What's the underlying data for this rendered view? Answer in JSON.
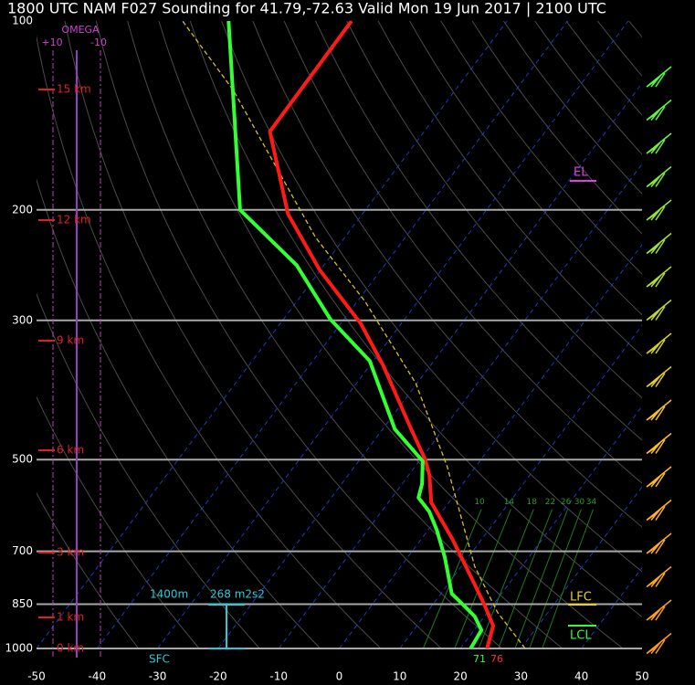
{
  "chart_data": {
    "type": "skewt",
    "title": "1800 UTC NAM F027 Sounding for 41.79,-72.63 Valid  Mon 19 Jun 2017 | 2100 UTC",
    "xlim": [
      -50,
      50
    ],
    "xticks": [
      -50,
      -40,
      -30,
      -20,
      -10,
      0,
      10,
      20,
      30,
      40,
      50
    ],
    "ylim": [
      1000,
      100
    ],
    "yticks": [
      100,
      200,
      300,
      500,
      700,
      850,
      1000
    ],
    "log_y": true,
    "grid": true,
    "series": [
      {
        "color": "#ff1a1a",
        "pressure": [
          1000,
          920,
          851,
          765,
          669,
          585,
          529,
          500,
          447,
          354,
          304,
          249,
          203,
          150,
          100
        ],
        "values": [
          24.4,
          22.6,
          18.5,
          12.6,
          5.1,
          -2.9,
          -6.6,
          -9.2,
          -15.3,
          -27.8,
          -36.6,
          -50.2,
          -62.3,
          -75.5,
          -75.7
        ]
      },
      {
        "color": "#33ff33",
        "pressure": [
          1000,
          935,
          889,
          846,
          818,
          715,
          647,
          605,
          575,
          547,
          503,
          447,
          348,
          299,
          245,
          200,
          100
        ],
        "values": [
          21.7,
          21.2,
          18.4,
          14.5,
          11.8,
          6.1,
          1.4,
          -2.1,
          -5.6,
          -6.7,
          -9.4,
          -18.0,
          -30.6,
          -42.2,
          -54.5,
          -70.7,
          -96
        ]
      },
      {
        "color": "#d6c020",
        "pressure": [
          1000,
          875,
          740,
          512,
          378,
          280,
          221,
          169,
          129,
          100
        ],
        "values": [
          30.7,
          21.6,
          12.2,
          -4.8,
          -20.2,
          -38.7,
          -54.9,
          -70.7,
          -86.6,
          -103.6
        ]
      }
    ],
    "mixing_ratio_lines": [
      10,
      14,
      18,
      22,
      26,
      30,
      34
    ],
    "height_labels": [
      "15 km",
      "12 km",
      "9 km",
      "6 km",
      "3 km",
      "1 km",
      "0 km"
    ],
    "annotations": {
      "omega": "OMEGA",
      "omega_left": "+10",
      "omega_right": "-10",
      "el": "EL",
      "lfc": "LFC",
      "lcl": "LCL",
      "lcl_height": "1400m",
      "helicity": "268 m2s2",
      "sfc": "SFC",
      "sfc_dewpoint": "71",
      "sfc_temp": "76"
    }
  }
}
